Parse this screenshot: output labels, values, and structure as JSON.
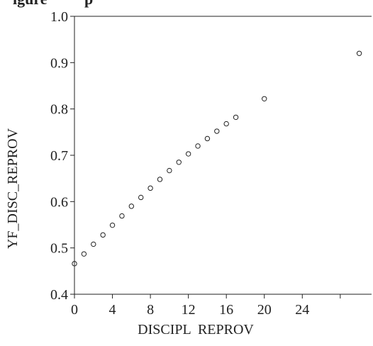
{
  "header": {
    "title_fragment": "igure ’’’ ’’’’p"
  },
  "chart_data": {
    "type": "scatter",
    "title": "",
    "xlabel": "DISCIPL  REPROV",
    "ylabel": "YF_DISC_REPROV",
    "xlim": [
      0,
      31.3
    ],
    "ylim": [
      0.4,
      1.0
    ],
    "x_ticks": [
      0,
      4,
      8,
      12,
      16,
      20,
      24
    ],
    "y_ticks": [
      0.4,
      0.5,
      0.6,
      0.7,
      0.8,
      0.9,
      1.0
    ],
    "y_tick_labels": [
      "0.4",
      "0.5",
      "0.6",
      "0.7",
      "0.8",
      "0.9",
      "1.0"
    ],
    "grid": false,
    "marker": "open-circle",
    "points": [
      {
        "x": 0,
        "y": 0.466
      },
      {
        "x": 1,
        "y": 0.487
      },
      {
        "x": 2,
        "y": 0.508
      },
      {
        "x": 3,
        "y": 0.528
      },
      {
        "x": 4,
        "y": 0.549
      },
      {
        "x": 5,
        "y": 0.569
      },
      {
        "x": 6,
        "y": 0.59
      },
      {
        "x": 7,
        "y": 0.609
      },
      {
        "x": 8,
        "y": 0.629
      },
      {
        "x": 9,
        "y": 0.648
      },
      {
        "x": 10,
        "y": 0.667
      },
      {
        "x": 11,
        "y": 0.685
      },
      {
        "x": 12,
        "y": 0.703
      },
      {
        "x": 13,
        "y": 0.72
      },
      {
        "x": 14,
        "y": 0.736
      },
      {
        "x": 15,
        "y": 0.752
      },
      {
        "x": 16,
        "y": 0.768
      },
      {
        "x": 17,
        "y": 0.782
      },
      {
        "x": 20,
        "y": 0.822
      },
      {
        "x": 30,
        "y": 0.92
      }
    ]
  }
}
